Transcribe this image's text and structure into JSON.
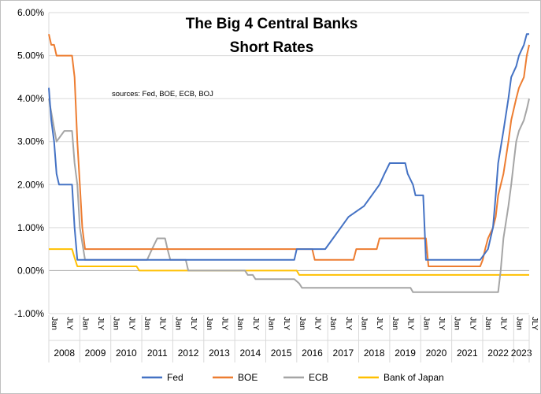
{
  "chart_data": {
    "type": "line",
    "title": [
      "The Big 4 Central Banks",
      "Short Rates"
    ],
    "annotation": "sources: Fed, BOE, ECB, BOJ",
    "xlabel": "",
    "ylabel": "",
    "y_axis": {
      "range": [
        -1.0,
        6.0
      ],
      "step": 1.0,
      "tick_labels": [
        "-1.00%",
        "0.00%",
        "1.00%",
        "2.00%",
        "3.00%",
        "4.00%",
        "5.00%",
        "6.00%"
      ],
      "format": "percent"
    },
    "x_axis": {
      "start": 2008.0,
      "end": 2023.5,
      "years": [
        "2008",
        "2009",
        "2010",
        "2011",
        "2012",
        "2013",
        "2014",
        "2015",
        "2016",
        "2017",
        "2018",
        "2019",
        "2020",
        "2021",
        "2022",
        "2023"
      ],
      "month_tick_labels": [
        "Jan",
        "JLY"
      ]
    },
    "grid": {
      "horizontal": true,
      "vertical": false
    },
    "legend": {
      "position": "bottom",
      "entries": [
        "Fed",
        "BOE",
        "ECB",
        "Bank of Japan"
      ]
    },
    "series": [
      {
        "name": "Fed",
        "color": "#4472C4",
        "points": [
          [
            2008.0,
            4.25
          ],
          [
            2008.08,
            3.5
          ],
          [
            2008.17,
            3.0
          ],
          [
            2008.25,
            2.25
          ],
          [
            2008.33,
            2.0
          ],
          [
            2008.75,
            2.0
          ],
          [
            2008.83,
            1.0
          ],
          [
            2008.92,
            0.25
          ],
          [
            2015.92,
            0.25
          ],
          [
            2016.0,
            0.5
          ],
          [
            2016.92,
            0.5
          ],
          [
            2017.17,
            0.75
          ],
          [
            2017.42,
            1.0
          ],
          [
            2017.67,
            1.25
          ],
          [
            2018.17,
            1.5
          ],
          [
            2018.42,
            1.75
          ],
          [
            2018.67,
            2.0
          ],
          [
            2018.83,
            2.25
          ],
          [
            2019.0,
            2.5
          ],
          [
            2019.5,
            2.5
          ],
          [
            2019.58,
            2.25
          ],
          [
            2019.75,
            2.0
          ],
          [
            2019.83,
            1.75
          ],
          [
            2020.08,
            1.75
          ],
          [
            2020.17,
            0.25
          ],
          [
            2021.92,
            0.25
          ],
          [
            2022.17,
            0.5
          ],
          [
            2022.33,
            1.0
          ],
          [
            2022.42,
            1.75
          ],
          [
            2022.5,
            2.5
          ],
          [
            2022.67,
            3.25
          ],
          [
            2022.83,
            4.0
          ],
          [
            2022.92,
            4.5
          ],
          [
            2023.08,
            4.75
          ],
          [
            2023.17,
            5.0
          ],
          [
            2023.33,
            5.25
          ],
          [
            2023.42,
            5.5
          ],
          [
            2023.5,
            5.5
          ]
        ]
      },
      {
        "name": "BOE",
        "color": "#ED7D31",
        "points": [
          [
            2008.0,
            5.5
          ],
          [
            2008.08,
            5.25
          ],
          [
            2008.17,
            5.25
          ],
          [
            2008.25,
            5.0
          ],
          [
            2008.75,
            5.0
          ],
          [
            2008.83,
            4.5
          ],
          [
            2008.92,
            3.0
          ],
          [
            2009.0,
            2.0
          ],
          [
            2009.08,
            1.0
          ],
          [
            2009.17,
            0.5
          ],
          [
            2016.5,
            0.5
          ],
          [
            2016.58,
            0.25
          ],
          [
            2017.83,
            0.25
          ],
          [
            2017.92,
            0.5
          ],
          [
            2018.58,
            0.5
          ],
          [
            2018.67,
            0.75
          ],
          [
            2020.17,
            0.75
          ],
          [
            2020.25,
            0.1
          ],
          [
            2021.92,
            0.1
          ],
          [
            2022.0,
            0.25
          ],
          [
            2022.08,
            0.5
          ],
          [
            2022.17,
            0.75
          ],
          [
            2022.33,
            1.0
          ],
          [
            2022.42,
            1.25
          ],
          [
            2022.5,
            1.75
          ],
          [
            2022.67,
            2.25
          ],
          [
            2022.83,
            3.0
          ],
          [
            2022.92,
            3.5
          ],
          [
            2023.08,
            4.0
          ],
          [
            2023.17,
            4.25
          ],
          [
            2023.33,
            4.5
          ],
          [
            2023.42,
            5.0
          ],
          [
            2023.5,
            5.25
          ]
        ]
      },
      {
        "name": "ECB",
        "color": "#A5A5A5",
        "points": [
          [
            2008.0,
            4.0
          ],
          [
            2008.25,
            3.0
          ],
          [
            2008.5,
            3.25
          ],
          [
            2008.75,
            3.25
          ],
          [
            2008.83,
            2.5
          ],
          [
            2008.92,
            2.0
          ],
          [
            2009.0,
            1.0
          ],
          [
            2009.17,
            0.25
          ],
          [
            2011.17,
            0.25
          ],
          [
            2011.33,
            0.5
          ],
          [
            2011.5,
            0.75
          ],
          [
            2011.75,
            0.75
          ],
          [
            2011.83,
            0.5
          ],
          [
            2011.92,
            0.25
          ],
          [
            2012.42,
            0.25
          ],
          [
            2012.5,
            0.0
          ],
          [
            2014.33,
            0.0
          ],
          [
            2014.42,
            -0.1
          ],
          [
            2014.58,
            -0.1
          ],
          [
            2014.67,
            -0.2
          ],
          [
            2015.92,
            -0.2
          ],
          [
            2016.08,
            -0.3
          ],
          [
            2016.17,
            -0.4
          ],
          [
            2019.67,
            -0.4
          ],
          [
            2019.75,
            -0.5
          ],
          [
            2022.5,
            -0.5
          ],
          [
            2022.58,
            0.0
          ],
          [
            2022.67,
            0.75
          ],
          [
            2022.83,
            1.5
          ],
          [
            2022.92,
            2.0
          ],
          [
            2023.0,
            2.5
          ],
          [
            2023.08,
            3.0
          ],
          [
            2023.17,
            3.25
          ],
          [
            2023.33,
            3.5
          ],
          [
            2023.42,
            3.75
          ],
          [
            2023.5,
            4.0
          ]
        ]
      },
      {
        "name": "Bank of Japan",
        "color": "#FFC000",
        "points": [
          [
            2008.0,
            0.5
          ],
          [
            2008.75,
            0.5
          ],
          [
            2008.83,
            0.3
          ],
          [
            2008.92,
            0.1
          ],
          [
            2010.83,
            0.1
          ],
          [
            2010.92,
            0.0
          ],
          [
            2016.0,
            0.0
          ],
          [
            2016.08,
            -0.1
          ],
          [
            2023.5,
            -0.1
          ]
        ]
      }
    ]
  }
}
